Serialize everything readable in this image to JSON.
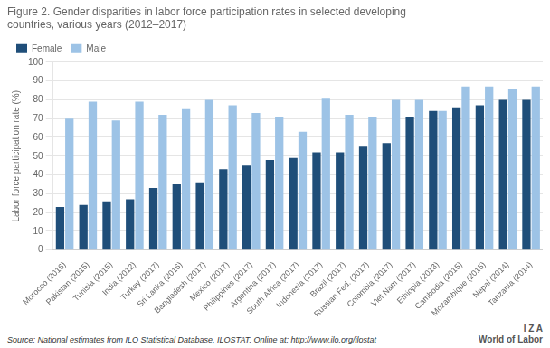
{
  "chart_data": {
    "type": "bar",
    "title": "Figure 2. Gender disparities in labor force participation rates in selected developing\ncountries, various years (2012–2017)",
    "ylabel": "Labor force participation rate (%)",
    "source": "Source: National estimates from ILO Statistical Database, ILOSTAT. Online at: http://www.ilo.org/ilostat",
    "annotations": [
      "I Z A",
      "World of Labor"
    ],
    "categories": [
      "Morocco (2016)",
      "Pakistan (2015)",
      "Tunisia (2015)",
      "India (2012)",
      "Turkey (2017)",
      "Sri Lanka (2016)",
      "Bangladesh (2017)",
      "Mexico (2017)",
      "Philippines (2017)",
      "Argentina (2017)",
      "South Africa (2017)",
      "Indonesia (2017)",
      "Brazil (2017)",
      "Russian Fed. (2017)",
      "Colombia (2017)",
      "Viet Nam (2017)",
      "Ethiopia (2013)",
      "Cambodia (2015)",
      "Mozambique (2015)",
      "Nepal (2014)",
      "Tanzania (2014)"
    ],
    "series": [
      {
        "name": "Female",
        "color": "#1f4e79",
        "values": [
          23,
          24,
          26,
          27,
          33,
          35,
          36,
          43,
          45,
          48,
          49,
          52,
          52,
          55,
          57,
          71,
          74,
          76,
          77,
          80,
          80
        ]
      },
      {
        "name": "Male",
        "color": "#9dc3e6",
        "values": [
          70,
          79,
          69,
          79,
          72,
          75,
          80,
          77,
          73,
          71,
          63,
          81,
          72,
          71,
          80,
          80,
          74,
          87,
          87,
          86,
          87
        ]
      }
    ],
    "ylim": [
      0,
      100
    ],
    "yticks": [
      0,
      10,
      20,
      30,
      40,
      50,
      60,
      70,
      80,
      90,
      100
    ],
    "grid": true,
    "legend": "upper left"
  }
}
